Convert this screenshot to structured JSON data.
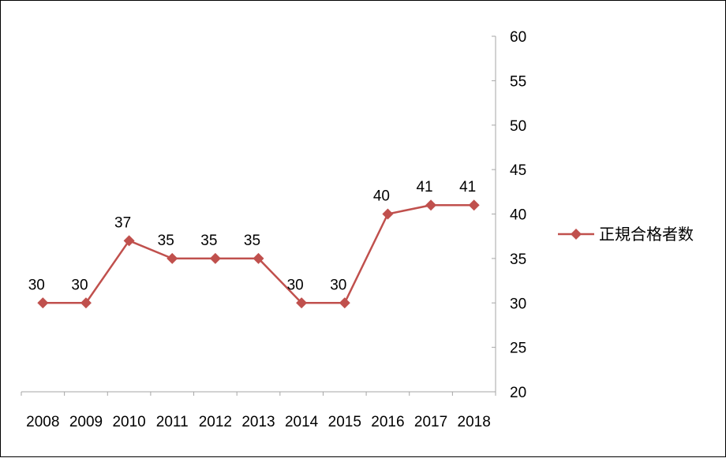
{
  "chart_data": {
    "type": "line",
    "categories": [
      "2008",
      "2009",
      "2010",
      "2011",
      "2012",
      "2013",
      "2014",
      "2015",
      "2016",
      "2017",
      "2018"
    ],
    "series": [
      {
        "name": "正規合格者数",
        "color": "#C0504D",
        "marker": "diamond",
        "values": [
          30,
          30,
          37,
          35,
          35,
          35,
          30,
          30,
          40,
          41,
          41
        ],
        "data_labels": [
          "30",
          "30",
          "37",
          "35",
          "35",
          "35",
          "30",
          "30",
          "40",
          "41",
          "41"
        ]
      }
    ],
    "y_axis": {
      "position": "right",
      "min": 20,
      "max": 60,
      "step": 5,
      "tick_labels": [
        "20",
        "25",
        "30",
        "35",
        "40",
        "45",
        "50",
        "55",
        "60"
      ]
    },
    "grid": false,
    "legend": "right",
    "axis_color": "#A6A6A6"
  }
}
